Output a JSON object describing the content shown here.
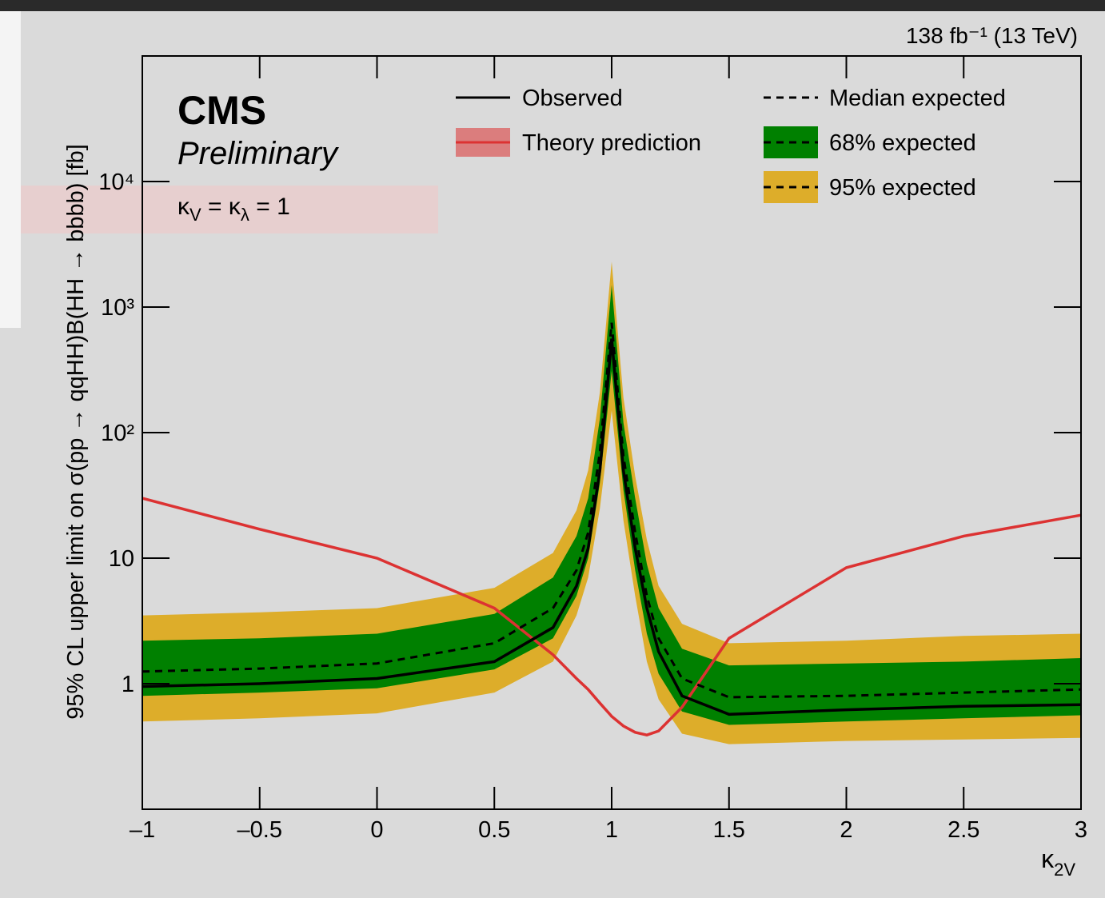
{
  "chart_data": {
    "type": "line",
    "lumi_label": "138 fb⁻¹ (13 TeV)",
    "experiment": "CMS",
    "status": "Preliminary",
    "annotation_parts": [
      "κ",
      "V",
      " = κ",
      "λ",
      " = 1"
    ],
    "xlabel_parts": [
      "κ",
      "2V"
    ],
    "ylabel": "95% CL upper limit on σ(pp → qqHH)B(HH → bbbb) [fb]",
    "ylog": true,
    "grid": false,
    "x": [
      -1,
      -0.5,
      0,
      0.5,
      0.75,
      0.85,
      0.9,
      0.95,
      1.0,
      1.05,
      1.1,
      1.15,
      1.2,
      1.3,
      1.5,
      2,
      2.5,
      3
    ],
    "series": [
      {
        "name": "Observed",
        "color": "#000000",
        "dash": false,
        "values": [
          0.95,
          1.0,
          1.1,
          1.5,
          2.8,
          6,
          12,
          50,
          560,
          50,
          12,
          4,
          1.8,
          0.8,
          0.57,
          0.62,
          0.66,
          0.68
        ]
      },
      {
        "name": "Median expected",
        "color": "#000000",
        "dash": true,
        "values": [
          1.25,
          1.32,
          1.45,
          2.1,
          4,
          8,
          16,
          70,
          750,
          65,
          16,
          5,
          2.3,
          1.1,
          0.78,
          0.8,
          0.85,
          0.9
        ]
      },
      {
        "name": "Theory prediction",
        "color": "#dc3232",
        "dash": false,
        "values": [
          30,
          17,
          10,
          4.0,
          1.7,
          1.1,
          0.9,
          0.7,
          0.55,
          0.46,
          0.41,
          0.39,
          0.42,
          0.65,
          2.3,
          8.4,
          15,
          22
        ]
      }
    ],
    "bands": [
      {
        "name": "68% expected",
        "color": "#008000",
        "lower": [
          0.8,
          0.85,
          0.92,
          1.3,
          2.3,
          5,
          10,
          40,
          310,
          35,
          8,
          2.5,
          1.2,
          0.6,
          0.47,
          0.5,
          0.53,
          0.56
        ],
        "upper": [
          2.2,
          2.3,
          2.5,
          3.6,
          7,
          15,
          30,
          130,
          1500,
          120,
          30,
          9,
          4,
          1.9,
          1.4,
          1.45,
          1.5,
          1.6
        ]
      },
      {
        "name": "95% expected",
        "color": "#ddad2a",
        "lower": [
          0.5,
          0.53,
          0.58,
          0.85,
          1.5,
          3.5,
          7,
          25,
          150,
          20,
          5,
          1.5,
          0.75,
          0.4,
          0.33,
          0.35,
          0.36,
          0.37
        ],
        "upper": [
          3.5,
          3.7,
          4.0,
          5.8,
          11,
          24,
          50,
          210,
          2300,
          190,
          45,
          14,
          6,
          3,
          2.1,
          2.2,
          2.4,
          2.5
        ]
      }
    ],
    "xlim": [
      -1,
      3
    ],
    "ylim": [
      0.1,
      100000
    ],
    "xticks": [
      {
        "value": -1,
        "label": "–1"
      },
      {
        "value": -0.5,
        "label": "–0.5"
      },
      0,
      0.5,
      1,
      1.5,
      2,
      2.5,
      3
    ],
    "yticks": [
      1,
      10,
      {
        "value": 100,
        "label": "10²"
      },
      {
        "value": 1000,
        "label": "10³"
      },
      {
        "value": 10000,
        "label": "10⁴"
      }
    ]
  }
}
